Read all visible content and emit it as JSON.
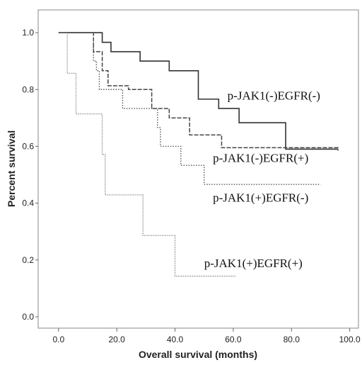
{
  "chart_data": {
    "type": "line",
    "title": "",
    "xlabel": "Overall survival (months)",
    "ylabel": "Percent survival",
    "xlim": [
      -7,
      103
    ],
    "ylim": [
      -0.04,
      1.08
    ],
    "xticks": [
      0,
      20,
      40,
      60,
      80,
      100
    ],
    "xtick_labels": [
      "0.0",
      "20.0",
      "40.0",
      "60.0",
      "80.0",
      "100.0"
    ],
    "yticks": [
      0,
      0.2,
      0.4,
      0.6,
      0.8,
      1.0
    ],
    "ytick_labels": [
      "0.0",
      "0.2",
      "0.4",
      "0.6",
      "0.8",
      "1.0"
    ],
    "grid": false,
    "series": [
      {
        "name": "p-JAK1(-)EGFR(-)",
        "color": "#333333",
        "style": "solid",
        "steps": [
          [
            0,
            1.0
          ],
          [
            15,
            0.966
          ],
          [
            18,
            0.933
          ],
          [
            28,
            0.9
          ],
          [
            38,
            0.866
          ],
          [
            48,
            0.766
          ],
          [
            55,
            0.733
          ],
          [
            62,
            0.683
          ],
          [
            78,
            0.59
          ],
          [
            96,
            0.59
          ]
        ]
      },
      {
        "name": "p-JAK1(-)EGFR(+)",
        "color": "#444444",
        "style": "dashed",
        "steps": [
          [
            0,
            1.0
          ],
          [
            12,
            0.933
          ],
          [
            15,
            0.866
          ],
          [
            17,
            0.813
          ],
          [
            24,
            0.8
          ],
          [
            32,
            0.733
          ],
          [
            38,
            0.7
          ],
          [
            45,
            0.64
          ],
          [
            56,
            0.595
          ],
          [
            96,
            0.585
          ]
        ]
      },
      {
        "name": "p-JAK1(+)EGFR(-)",
        "color": "#555555",
        "style": "dotted",
        "steps": [
          [
            0,
            1.0
          ],
          [
            12,
            0.9
          ],
          [
            13,
            0.866
          ],
          [
            14,
            0.8
          ],
          [
            22,
            0.733
          ],
          [
            34,
            0.666
          ],
          [
            35,
            0.6
          ],
          [
            42,
            0.533
          ],
          [
            50,
            0.466
          ],
          [
            90,
            0.466
          ]
        ]
      },
      {
        "name": "p-JAK1(+)EGFR(+)",
        "color": "#777777",
        "style": "dashdot",
        "steps": [
          [
            0,
            1.0
          ],
          [
            3,
            0.857
          ],
          [
            6,
            0.714
          ],
          [
            15,
            0.571
          ],
          [
            16,
            0.429
          ],
          [
            29,
            0.286
          ],
          [
            40,
            0.143
          ],
          [
            61,
            0.143
          ]
        ]
      }
    ],
    "labels": [
      {
        "text": "p-JAK1(-)EGFR(-)",
        "x": 58,
        "y": 0.765
      },
      {
        "text": "p-JAK1(-)EGFR(+)",
        "x": 53,
        "y": 0.545
      },
      {
        "text": "p-JAK1(+)EGFR(-)",
        "x": 53,
        "y": 0.405
      },
      {
        "text": "p-JAK1(+)EGFR(+)",
        "x": 50,
        "y": 0.175
      }
    ]
  }
}
